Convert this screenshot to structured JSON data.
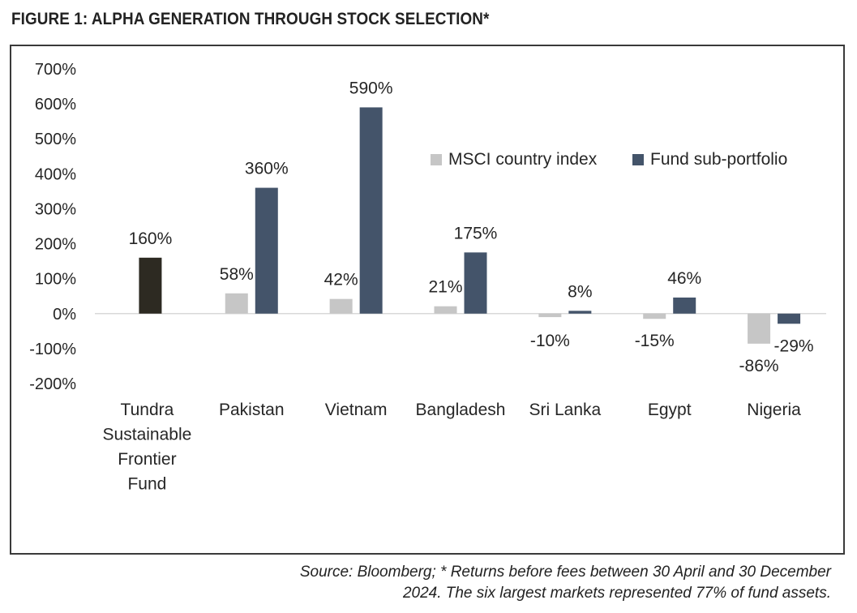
{
  "figure_title": "FIGURE 1: ALPHA GENERATION THROUGH STOCK SELECTION*",
  "source_lines": [
    "Source: Bloomberg; * Returns before fees between 30 April and 30 December",
    "2024. The six largest markets represented 77% of fund assets."
  ],
  "colors": {
    "msci": "#c6c6c6",
    "fund": "#44546a",
    "tundra": "#2d2a22",
    "zero_line": "#d9d9d9",
    "text": "#262626"
  },
  "chart_data": {
    "type": "bar",
    "title": "",
    "xlabel": "",
    "ylabel": "",
    "ylim": [
      -200,
      700
    ],
    "yticks": [
      700,
      600,
      500,
      400,
      300,
      200,
      100,
      0,
      -100,
      -200
    ],
    "ytick_labels": [
      "700%",
      "600%",
      "500%",
      "400%",
      "300%",
      "200%",
      "100%",
      "0%",
      "-100%",
      "-200%"
    ],
    "grid": false,
    "legend_position": "top-right",
    "categories": [
      [
        "Tundra",
        "Sustainable",
        "Frontier",
        "Fund"
      ],
      [
        "Pakistan"
      ],
      [
        "Vietnam"
      ],
      [
        "Bangladesh"
      ],
      [
        "Sri Lanka"
      ],
      [
        "Egypt"
      ],
      [
        "Nigeria"
      ]
    ],
    "series": [
      {
        "name": "MSCI country index",
        "values": [
          null,
          58,
          42,
          21,
          -10,
          -15,
          -86
        ],
        "labels": [
          "",
          "58%",
          "42%",
          "21%",
          "-10%",
          "-15%",
          "-86%"
        ]
      },
      {
        "name": "Fund sub-portfolio",
        "values": [
          160,
          360,
          590,
          175,
          8,
          46,
          -29
        ],
        "labels": [
          "160%",
          "360%",
          "590%",
          "175%",
          "8%",
          "46%",
          "-29%"
        ]
      }
    ]
  }
}
